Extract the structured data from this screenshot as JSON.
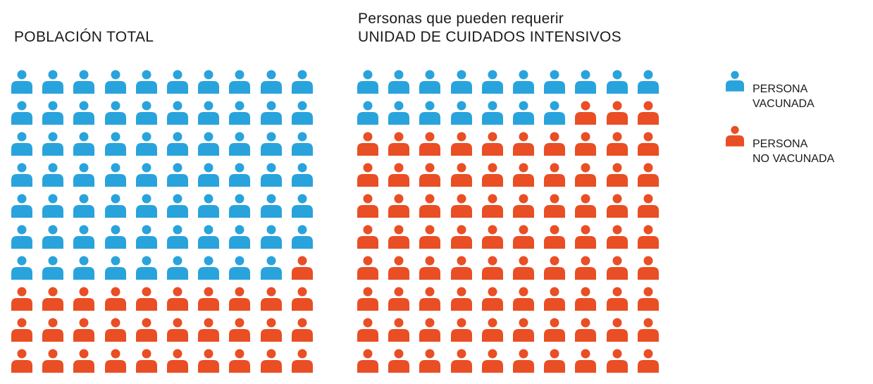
{
  "chart_data": [
    {
      "type": "pictogram",
      "title": "POBLACIÓN TOTAL",
      "total": 100,
      "columns": 10,
      "series": [
        {
          "name": "PERSONA VACUNADA",
          "value": 69,
          "color": "#29a3dc"
        },
        {
          "name": "PERSONA NO VACUNADA",
          "value": 31,
          "color": "#e94e24"
        }
      ]
    },
    {
      "type": "pictogram",
      "title_line1": "Personas que pueden requerir",
      "title_line2": "UNIDAD DE CUIDADOS INTENSIVOS",
      "total": 100,
      "columns": 10,
      "series": [
        {
          "name": "PERSONA VACUNADA",
          "value": 17,
          "color": "#29a3dc"
        },
        {
          "name": "PERSONA NO VACUNADA",
          "value": 83,
          "color": "#e94e24"
        }
      ]
    }
  ],
  "legend": {
    "placement": "right",
    "items": [
      {
        "label": "PERSONA\nVACUNADA",
        "color": "#29a3dc",
        "icon": "person-icon"
      },
      {
        "label": "PERSONA\nNO VACUNADA",
        "color": "#e94e24",
        "icon": "person-icon"
      }
    ]
  }
}
